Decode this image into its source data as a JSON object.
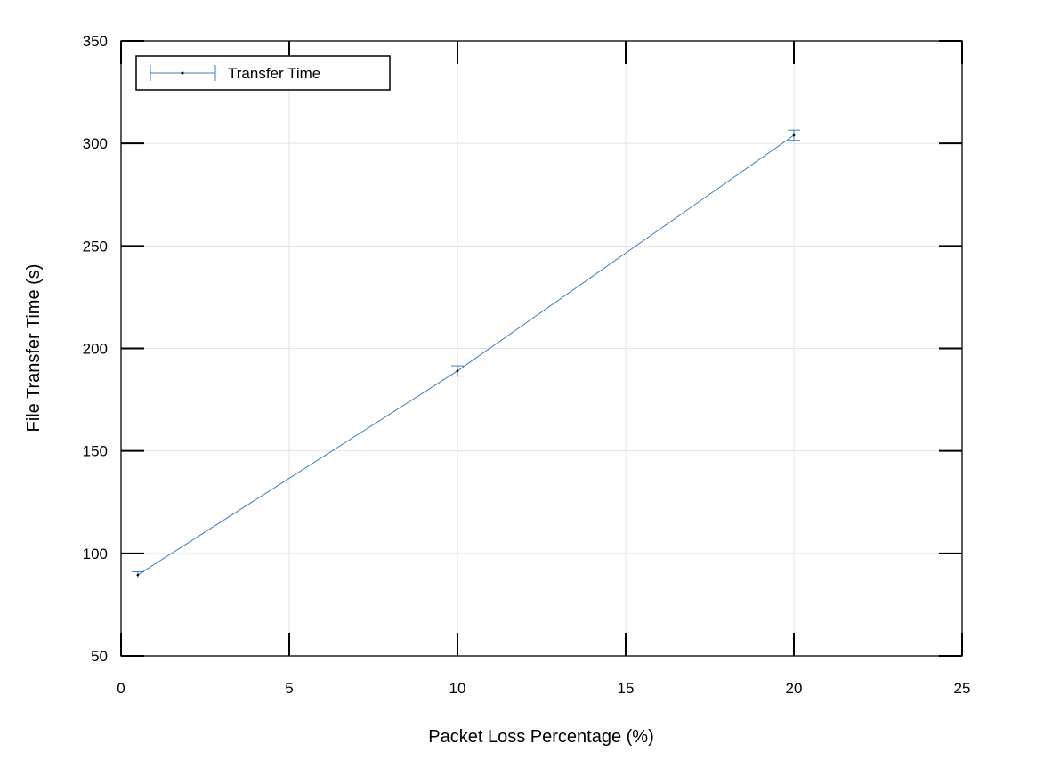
{
  "chart_data": {
    "type": "line",
    "title": "",
    "xlabel": "Packet Loss Percentage (%)",
    "ylabel": "File Transfer Time (s)",
    "xlim": [
      0,
      25
    ],
    "ylim": [
      50,
      350
    ],
    "xticks": [
      0,
      5,
      10,
      15,
      20,
      25
    ],
    "yticks": [
      50,
      100,
      150,
      200,
      250,
      300,
      350
    ],
    "grid": true,
    "legend_position": "top-left",
    "series": [
      {
        "name": "Transfer Time",
        "color": "#3b7fc0",
        "x": [
          0.5,
          10,
          20
        ],
        "y": [
          89.5,
          189,
          304
        ],
        "error": [
          1.5,
          2.5,
          2.5
        ]
      }
    ]
  }
}
